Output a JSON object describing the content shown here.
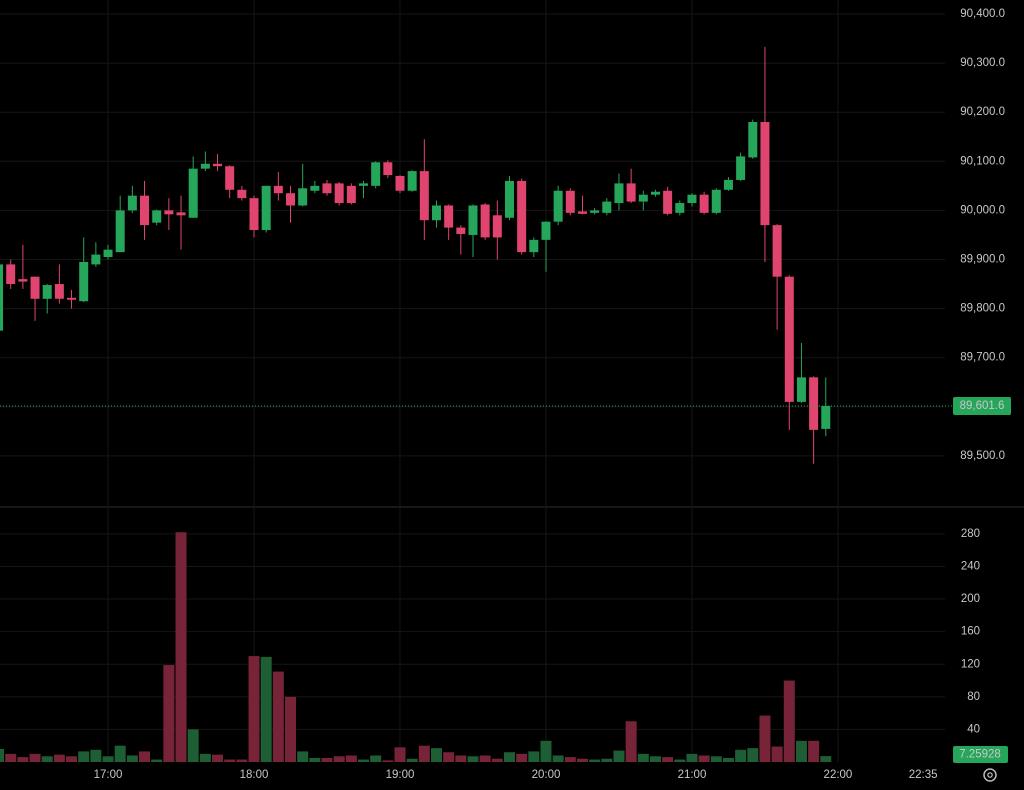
{
  "chart_data": {
    "type": "candlestick",
    "x": [
      975,
      980,
      985,
      990,
      995,
      1000,
      1005,
      1010,
      1015,
      1020,
      1025,
      1030,
      1035,
      1040,
      1045,
      1050,
      1055,
      1060,
      1065,
      1070,
      1075,
      1080,
      1085,
      1090,
      1095,
      1100,
      1105,
      1110,
      1115,
      1120,
      1125,
      1130,
      1135,
      1140,
      1145,
      1150,
      1155,
      1160,
      1165,
      1170,
      1175,
      1180,
      1185,
      1190,
      1195,
      1200,
      1205,
      1210,
      1215,
      1220,
      1225,
      1230,
      1235,
      1240,
      1245,
      1250,
      1255,
      1260,
      1265,
      1270,
      1275,
      1280,
      1285,
      1290,
      1295,
      1300,
      1305,
      1310,
      1315
    ],
    "open": [
      89755,
      89890,
      89860,
      89865,
      89820,
      89850,
      89822,
      89815,
      89890,
      89905,
      89915,
      90000,
      90030,
      89975,
      90000,
      89996,
      89985,
      90085,
      90095,
      90090,
      90042,
      90025,
      89960,
      90050,
      90035,
      90010,
      90040,
      90055,
      90055,
      90050,
      90050,
      90050,
      90098,
      90070,
      90040,
      90080,
      89980,
      90010,
      89965,
      89950,
      90012,
      89990,
      89985,
      90060,
      89915,
      89940,
      89977,
      90040,
      89998,
      89995,
      89995,
      90015,
      90055,
      90018,
      90032,
      90040,
      89995,
      90015,
      90032,
      89995,
      90042,
      90062,
      90108,
      90180,
      89970,
      89865,
      89610,
      89660,
      89555
    ],
    "high": [
      89895,
      89900,
      89930,
      89865,
      89850,
      89890,
      89838,
      89945,
      89935,
      89930,
      90030,
      90050,
      90060,
      90002,
      90025,
      90030,
      90110,
      90120,
      90115,
      90092,
      90050,
      90030,
      90050,
      90078,
      90050,
      90095,
      90060,
      90062,
      90058,
      90055,
      90060,
      90100,
      90102,
      90072,
      90082,
      90145,
      90020,
      90012,
      89970,
      90012,
      90015,
      90020,
      90070,
      90065,
      89945,
      89978,
      90050,
      90045,
      90030,
      90005,
      90025,
      90075,
      90085,
      90040,
      90042,
      90048,
      90020,
      90035,
      90038,
      90045,
      90068,
      90118,
      90185,
      90333,
      89972,
      89868,
      89730,
      89662,
      89660
    ],
    "low": [
      89750,
      89840,
      89840,
      89775,
      89790,
      89810,
      89800,
      89813,
      89885,
      89900,
      89915,
      89995,
      89940,
      89970,
      89960,
      89920,
      89985,
      90080,
      90080,
      90025,
      90020,
      89945,
      89955,
      90020,
      89975,
      90008,
      90035,
      90030,
      90010,
      90012,
      90025,
      90045,
      90066,
      90035,
      90038,
      89940,
      89965,
      89940,
      89910,
      89905,
      89940,
      89900,
      89980,
      89910,
      89905,
      89875,
      89970,
      89990,
      89992,
      89992,
      89990,
      90000,
      90015,
      90000,
      90028,
      89990,
      89990,
      90008,
      89992,
      89992,
      90040,
      90060,
      90105,
      89895,
      89757,
      89553,
      89608,
      89484,
      89540
    ],
    "close": [
      89890,
      89850,
      89855,
      89820,
      89848,
      89820,
      89818,
      89895,
      89910,
      89920,
      90000,
      90030,
      89970,
      90000,
      89992,
      89990,
      90085,
      90095,
      90090,
      90042,
      90025,
      89960,
      90050,
      90035,
      90010,
      90045,
      90050,
      90035,
      90015,
      90015,
      90055,
      90098,
      90072,
      90040,
      90080,
      89980,
      90010,
      89965,
      89952,
      90010,
      89945,
      89945,
      90060,
      89915,
      89940,
      89977,
      90040,
      89995,
      89993,
      90000,
      90018,
      90055,
      90018,
      90032,
      90038,
      89993,
      90015,
      90032,
      89995,
      90042,
      90062,
      90110,
      90180,
      89970,
      89865,
      89610,
      89660,
      89553,
      89601.6
    ],
    "volume": [
      16,
      10,
      6,
      10,
      7,
      9,
      7,
      13,
      15,
      7,
      20,
      8,
      13,
      3,
      119,
      282,
      40,
      10,
      9,
      3,
      3,
      130,
      129,
      111,
      80,
      13,
      5,
      5,
      7,
      8,
      3,
      8,
      2,
      18,
      4,
      20,
      17,
      12,
      8,
      7,
      8,
      4,
      12,
      10,
      13,
      26,
      8,
      6,
      4,
      3,
      4,
      14,
      50,
      10,
      7,
      6,
      3,
      10,
      8,
      7,
      5,
      15,
      17,
      57,
      19,
      100,
      26,
      26,
      7.25928
    ],
    "up_color": "#26a65b",
    "down_color": "#e0456f",
    "up_volume_color": "#1e5e35",
    "down_volume_color": "#772338",
    "xlim": [
      975.6,
      1364
    ],
    "xticks": [
      {
        "value": 1020,
        "label": "17:00"
      },
      {
        "value": 1080,
        "label": "18:00"
      },
      {
        "value": 1140,
        "label": "19:00"
      },
      {
        "value": 1200,
        "label": "20:00"
      },
      {
        "value": 1260,
        "label": "21:00"
      },
      {
        "value": 1320,
        "label": "22:00"
      }
    ],
    "time_marker": {
      "value": 1355,
      "label": "22:35"
    },
    "ylim": [
      89400,
      90428.5
    ],
    "yticks": [
      {
        "value": 89500,
        "label": "89,500.0"
      },
      {
        "value": 89600,
        "label": "89,600.0"
      },
      {
        "value": 89700,
        "label": "89,700.0"
      },
      {
        "value": 89800,
        "label": "89,800.0"
      },
      {
        "value": 89900,
        "label": "89,900.0"
      },
      {
        "value": 90000,
        "label": "90,000.0"
      },
      {
        "value": 90100,
        "label": "90,100.0"
      },
      {
        "value": 90200,
        "label": "90,200.0"
      },
      {
        "value": 90300,
        "label": "90,300.0"
      },
      {
        "value": 90400,
        "label": "90,400.0"
      }
    ],
    "last_price": {
      "value": 89601.6,
      "label": "89,601.6"
    },
    "y2lim": [
      0,
      313
    ],
    "y2ticks": [
      40,
      80,
      120,
      160,
      200,
      240,
      280
    ],
    "grid": true
  }
}
